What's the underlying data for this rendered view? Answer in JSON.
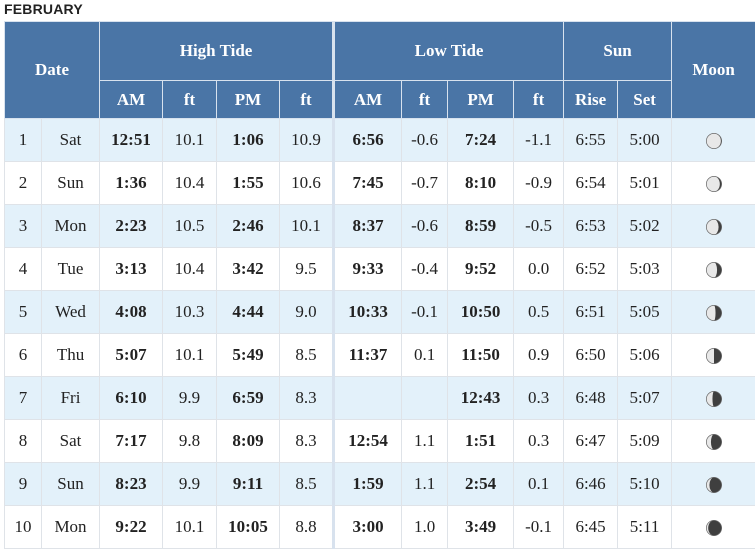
{
  "month": "FEBRUARY",
  "headers": {
    "date": "Date",
    "high_tide": "High Tide",
    "low_tide": "Low Tide",
    "sun": "Sun",
    "moon": "Moon",
    "am": "AM",
    "ft": "ft",
    "pm": "PM",
    "rise": "Rise",
    "set": "Set"
  },
  "rows": [
    {
      "day": "1",
      "dow": "Sat",
      "high_am": "12:51",
      "high_am_ft": "10.1",
      "high_pm": "1:06",
      "high_pm_ft": "10.9",
      "low_am": "6:56",
      "low_am_ft": "-0.6",
      "low_pm": "7:24",
      "low_pm_ft": "-1.1",
      "rise": "6:55",
      "set": "5:00",
      "moon_lit": 0.95,
      "moon_waxing": false
    },
    {
      "day": "2",
      "dow": "Sun",
      "high_am": "1:36",
      "high_am_ft": "10.4",
      "high_pm": "1:55",
      "high_pm_ft": "10.6",
      "low_am": "7:45",
      "low_am_ft": "-0.7",
      "low_pm": "8:10",
      "low_pm_ft": "-0.9",
      "rise": "6:54",
      "set": "5:01",
      "moon_lit": 0.88,
      "moon_waxing": false
    },
    {
      "day": "3",
      "dow": "Mon",
      "high_am": "2:23",
      "high_am_ft": "10.5",
      "high_pm": "2:46",
      "high_pm_ft": "10.1",
      "low_am": "8:37",
      "low_am_ft": "-0.6",
      "low_pm": "8:59",
      "low_pm_ft": "-0.5",
      "rise": "6:53",
      "set": "5:02",
      "moon_lit": 0.8,
      "moon_waxing": false
    },
    {
      "day": "4",
      "dow": "Tue",
      "high_am": "3:13",
      "high_am_ft": "10.4",
      "high_pm": "3:42",
      "high_pm_ft": "9.5",
      "low_am": "9:33",
      "low_am_ft": "-0.4",
      "low_pm": "9:52",
      "low_pm_ft": "0.0",
      "rise": "6:52",
      "set": "5:03",
      "moon_lit": 0.7,
      "moon_waxing": false
    },
    {
      "day": "5",
      "dow": "Wed",
      "high_am": "4:08",
      "high_am_ft": "10.3",
      "high_pm": "4:44",
      "high_pm_ft": "9.0",
      "low_am": "10:33",
      "low_am_ft": "-0.1",
      "low_pm": "10:50",
      "low_pm_ft": "0.5",
      "rise": "6:51",
      "set": "5:05",
      "moon_lit": 0.6,
      "moon_waxing": false
    },
    {
      "day": "6",
      "dow": "Thu",
      "high_am": "5:07",
      "high_am_ft": "10.1",
      "high_pm": "5:49",
      "high_pm_ft": "8.5",
      "low_am": "11:37",
      "low_am_ft": "0.1",
      "low_pm": "11:50",
      "low_pm_ft": "0.9",
      "rise": "6:50",
      "set": "5:06",
      "moon_lit": 0.5,
      "moon_waxing": false
    },
    {
      "day": "7",
      "dow": "Fri",
      "high_am": "6:10",
      "high_am_ft": "9.9",
      "high_pm": "6:59",
      "high_pm_ft": "8.3",
      "low_am": "",
      "low_am_ft": "",
      "low_pm": "12:43",
      "low_pm_ft": "0.3",
      "rise": "6:48",
      "set": "5:07",
      "moon_lit": 0.4,
      "moon_waxing": false
    },
    {
      "day": "8",
      "dow": "Sat",
      "high_am": "7:17",
      "high_am_ft": "9.8",
      "high_pm": "8:09",
      "high_pm_ft": "8.3",
      "low_am": "12:54",
      "low_am_ft": "1.1",
      "low_pm": "1:51",
      "low_pm_ft": "0.3",
      "rise": "6:47",
      "set": "5:09",
      "moon_lit": 0.3,
      "moon_waxing": false
    },
    {
      "day": "9",
      "dow": "Sun",
      "high_am": "8:23",
      "high_am_ft": "9.9",
      "high_pm": "9:11",
      "high_pm_ft": "8.5",
      "low_am": "1:59",
      "low_am_ft": "1.1",
      "low_pm": "2:54",
      "low_pm_ft": "0.1",
      "rise": "6:46",
      "set": "5:10",
      "moon_lit": 0.2,
      "moon_waxing": false
    },
    {
      "day": "10",
      "dow": "Mon",
      "high_am": "9:22",
      "high_am_ft": "10.1",
      "high_pm": "10:05",
      "high_pm_ft": "8.8",
      "low_am": "3:00",
      "low_am_ft": "1.0",
      "low_pm": "3:49",
      "low_pm_ft": "-0.1",
      "rise": "6:45",
      "set": "5:11",
      "moon_lit": 0.12,
      "moon_waxing": false
    }
  ]
}
